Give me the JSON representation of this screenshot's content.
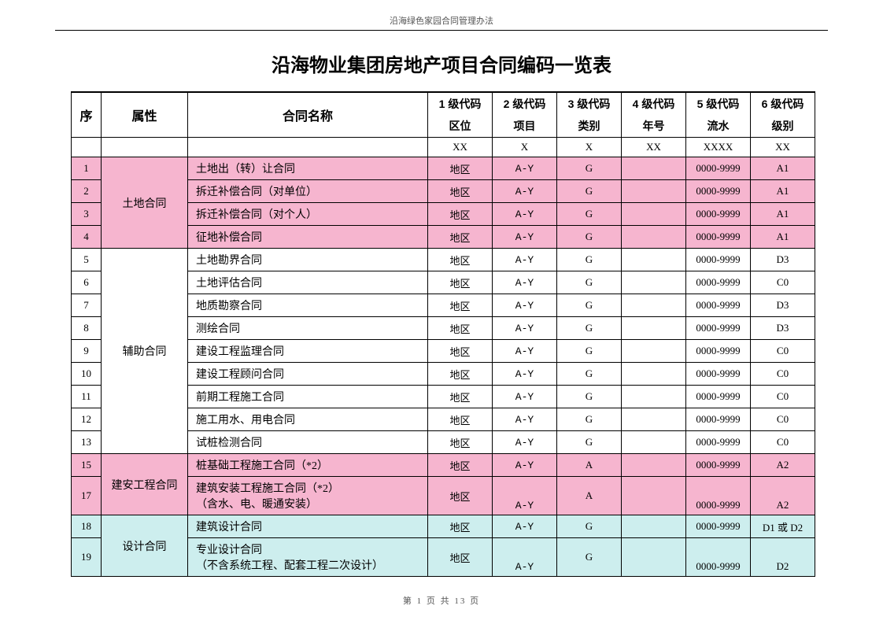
{
  "doc_header": "沿海绿色家园合同管理办法",
  "title": "沿海物业集团房地产项目合同编码一览表",
  "footer": "第 1 页 共 13 页",
  "colors": {
    "pink": "#f6b5cf",
    "cyan": "#cdeeee",
    "rule": "#000000",
    "bg": "#ffffff"
  },
  "header1": {
    "seq": "序",
    "attr": "属性",
    "name": "合同名称",
    "code1": "1 级代码",
    "code2": "2 级代码",
    "code3": "3 级代码",
    "code4": "4 级代码",
    "code5": "5 级代码",
    "code6": "6 级代码"
  },
  "header2": {
    "c1": "区位",
    "c2": "项目",
    "c3": "类别",
    "c4": "年号",
    "c5": "流水",
    "c6": "级别"
  },
  "format_row": {
    "c1": "XX",
    "c2": "X",
    "c3": "X",
    "c4": "XX",
    "c5": "XXXX",
    "c6": "XX"
  },
  "groups": {
    "g1": "土地合同",
    "g2": "辅助合同",
    "g3": "建安工程合同",
    "g4": "设计合同"
  },
  "rows": [
    {
      "seq": "1",
      "name": "土地出（转）让合同",
      "c1": "地区",
      "c2": "A-Y",
      "c3": "G",
      "c4": "",
      "c5": "0000-9999",
      "c6": "A1"
    },
    {
      "seq": "2",
      "name": "拆迁补偿合同（对单位）",
      "c1": "地区",
      "c2": "A-Y",
      "c3": "G",
      "c4": "",
      "c5": "0000-9999",
      "c6": "A1"
    },
    {
      "seq": "3",
      "name": "拆迁补偿合同（对个人）",
      "c1": "地区",
      "c2": "A-Y",
      "c3": "G",
      "c4": "",
      "c5": "0000-9999",
      "c6": "A1"
    },
    {
      "seq": "4",
      "name": "征地补偿合同",
      "c1": "地区",
      "c2": "A-Y",
      "c3": "G",
      "c4": "",
      "c5": "0000-9999",
      "c6": "A1"
    },
    {
      "seq": "5",
      "name": "土地勘界合同",
      "c1": "地区",
      "c2": "A-Y",
      "c3": "G",
      "c4": "",
      "c5": "0000-9999",
      "c6": "D3"
    },
    {
      "seq": "6",
      "name": "土地评估合同",
      "c1": "地区",
      "c2": "A-Y",
      "c3": "G",
      "c4": "",
      "c5": "0000-9999",
      "c6": "C0"
    },
    {
      "seq": "7",
      "name": "地质勘察合同",
      "c1": "地区",
      "c2": "A-Y",
      "c3": "G",
      "c4": "",
      "c5": "0000-9999",
      "c6": "D3"
    },
    {
      "seq": "8",
      "name": "测绘合同",
      "c1": "地区",
      "c2": "A-Y",
      "c3": "G",
      "c4": "",
      "c5": "0000-9999",
      "c6": "D3"
    },
    {
      "seq": "9",
      "name": "建设工程监理合同",
      "c1": "地区",
      "c2": "A-Y",
      "c3": "G",
      "c4": "",
      "c5": "0000-9999",
      "c6": "C0"
    },
    {
      "seq": "10",
      "name": "建设工程顾问合同",
      "c1": "地区",
      "c2": "A-Y",
      "c3": "G",
      "c4": "",
      "c5": "0000-9999",
      "c6": "C0"
    },
    {
      "seq": "11",
      "name": "前期工程施工合同",
      "c1": "地区",
      "c2": "A-Y",
      "c3": "G",
      "c4": "",
      "c5": "0000-9999",
      "c6": "C0"
    },
    {
      "seq": "12",
      "name": "施工用水、用电合同",
      "c1": "地区",
      "c2": "A-Y",
      "c3": "G",
      "c4": "",
      "c5": "0000-9999",
      "c6": "C0"
    },
    {
      "seq": "13",
      "name": "试桩检测合同",
      "c1": "地区",
      "c2": "A-Y",
      "c3": "G",
      "c4": "",
      "c5": "0000-9999",
      "c6": "C0"
    },
    {
      "seq": "15",
      "name": "桩基础工程施工合同（*2）",
      "c1": "地区",
      "c2": "A-Y",
      "c3": "A",
      "c4": "",
      "c5": "0000-9999",
      "c6": "A2"
    },
    {
      "seq": "17",
      "name": "建筑安装工程施工合同（*2）\n（含水、电、暖通安装）",
      "c1": "地区",
      "c2": "A-Y",
      "c3": "A",
      "c4": "",
      "c5": "0000-9999",
      "c6": "A2"
    },
    {
      "seq": "18",
      "name": "建筑设计合同",
      "c1": "地区",
      "c2": "A-Y",
      "c3": "G",
      "c4": "",
      "c5": "0000-9999",
      "c6": "D1 或 D2"
    },
    {
      "seq": "19",
      "name": "专业设计合同\n（不含系统工程、配套工程二次设计）",
      "c1": "地区",
      "c2": "A-Y",
      "c3": "G",
      "c4": "",
      "c5": "0000-9999",
      "c6": "D2"
    }
  ]
}
